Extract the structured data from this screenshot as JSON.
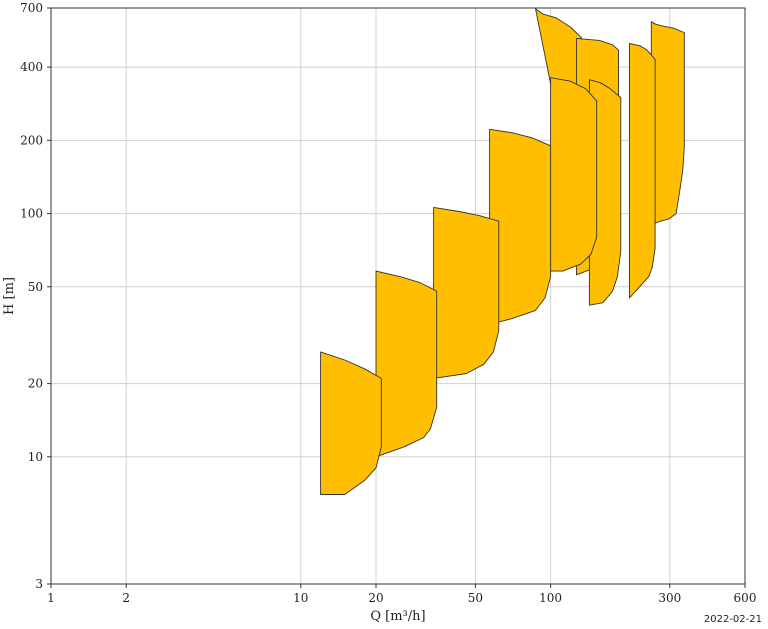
{
  "chart_data": {
    "type": "area",
    "x_scale": "log",
    "y_scale": "log",
    "xlim": [
      1,
      600
    ],
    "ylim": [
      3,
      700
    ],
    "xlabel": "Q [m³/h]",
    "ylabel": "H [m]",
    "x_ticks": [
      1,
      2,
      10,
      20,
      50,
      100,
      300,
      600
    ],
    "y_ticks": [
      3,
      10,
      20,
      50,
      100,
      200,
      400,
      700
    ],
    "grid": true,
    "fill_color": "#FFBF00",
    "edge_color": "#333333",
    "series": [
      {
        "polygon": [
          [
            87,
            695
          ],
          [
            93,
            662
          ],
          [
            105,
            638
          ],
          [
            120,
            585
          ],
          [
            133,
            528
          ],
          [
            133,
            290
          ],
          [
            130,
            160
          ],
          [
            125,
            120
          ],
          [
            119,
            95
          ],
          [
            110,
            80
          ],
          [
            96,
            77
          ],
          [
            87,
            75
          ],
          [
            87,
            85
          ],
          [
            90,
            92
          ],
          [
            92,
            97
          ],
          [
            95,
            105
          ],
          [
            100,
            120
          ],
          [
            103,
            155
          ],
          [
            110,
            210
          ]
        ]
      },
      {
        "polygon": [
          [
            253,
            615
          ],
          [
            264,
            600
          ],
          [
            280,
            591
          ],
          [
            310,
            578
          ],
          [
            343,
            555
          ],
          [
            343,
            187
          ],
          [
            338,
            150
          ],
          [
            331,
            130
          ],
          [
            318,
            100
          ],
          [
            297,
            95
          ],
          [
            275,
            93
          ],
          [
            253,
            90
          ]
        ]
      },
      {
        "polygon": [
          [
            207,
            500
          ],
          [
            227,
            490
          ],
          [
            243,
            471
          ],
          [
            262,
            430
          ],
          [
            262,
            72
          ],
          [
            255,
            60
          ],
          [
            247,
            55
          ],
          [
            227,
            50
          ],
          [
            207,
            45
          ],
          [
            207,
            500
          ]
        ]
      },
      {
        "polygon": [
          [
            127,
            525
          ],
          [
            157,
            515
          ],
          [
            177,
            494
          ],
          [
            187,
            470
          ],
          [
            187,
            90
          ],
          [
            180,
            72
          ],
          [
            170,
            66
          ],
          [
            145,
            59
          ],
          [
            127,
            56
          ],
          [
            127,
            525
          ]
        ]
      },
      {
        "polygon": [
          [
            143,
            355
          ],
          [
            158,
            345
          ],
          [
            172,
            328
          ],
          [
            191,
            300
          ],
          [
            191,
            70
          ],
          [
            185,
            55
          ],
          [
            177,
            48
          ],
          [
            162,
            43
          ],
          [
            143,
            42
          ],
          [
            143,
            355
          ]
        ]
      },
      {
        "polygon": [
          [
            100,
            362
          ],
          [
            120,
            350
          ],
          [
            138,
            326
          ],
          [
            153,
            290
          ],
          [
            153,
            80
          ],
          [
            145,
            68
          ],
          [
            132,
            62
          ],
          [
            112,
            58
          ],
          [
            100,
            58
          ],
          [
            100,
            362
          ]
        ]
      },
      {
        "polygon": [
          [
            57,
            222
          ],
          [
            70,
            215
          ],
          [
            84,
            205
          ],
          [
            100,
            190
          ],
          [
            100,
            55
          ],
          [
            95,
            45
          ],
          [
            87,
            40
          ],
          [
            70,
            37
          ],
          [
            57,
            35
          ],
          [
            57,
            222
          ]
        ]
      },
      {
        "polygon": [
          [
            34,
            106
          ],
          [
            43,
            102
          ],
          [
            52,
            98
          ],
          [
            62,
            93
          ],
          [
            62,
            33
          ],
          [
            59,
            27
          ],
          [
            54,
            24
          ],
          [
            46,
            22
          ],
          [
            34,
            21
          ],
          [
            34,
            106
          ]
        ]
      },
      {
        "polygon": [
          [
            20,
            58
          ],
          [
            25,
            55
          ],
          [
            30,
            52
          ],
          [
            35,
            48
          ],
          [
            35,
            16
          ],
          [
            33,
            13
          ],
          [
            31,
            12
          ],
          [
            26,
            11
          ],
          [
            20,
            10
          ],
          [
            20,
            58
          ]
        ]
      },
      {
        "polygon": [
          [
            12,
            27
          ],
          [
            15,
            25
          ],
          [
            18,
            23
          ],
          [
            21,
            21
          ],
          [
            21,
            11
          ],
          [
            20,
            9
          ],
          [
            18,
            8
          ],
          [
            15,
            7
          ],
          [
            12,
            7
          ],
          [
            12,
            27
          ]
        ]
      }
    ]
  },
  "footer": {
    "date": "2022-02-21"
  }
}
